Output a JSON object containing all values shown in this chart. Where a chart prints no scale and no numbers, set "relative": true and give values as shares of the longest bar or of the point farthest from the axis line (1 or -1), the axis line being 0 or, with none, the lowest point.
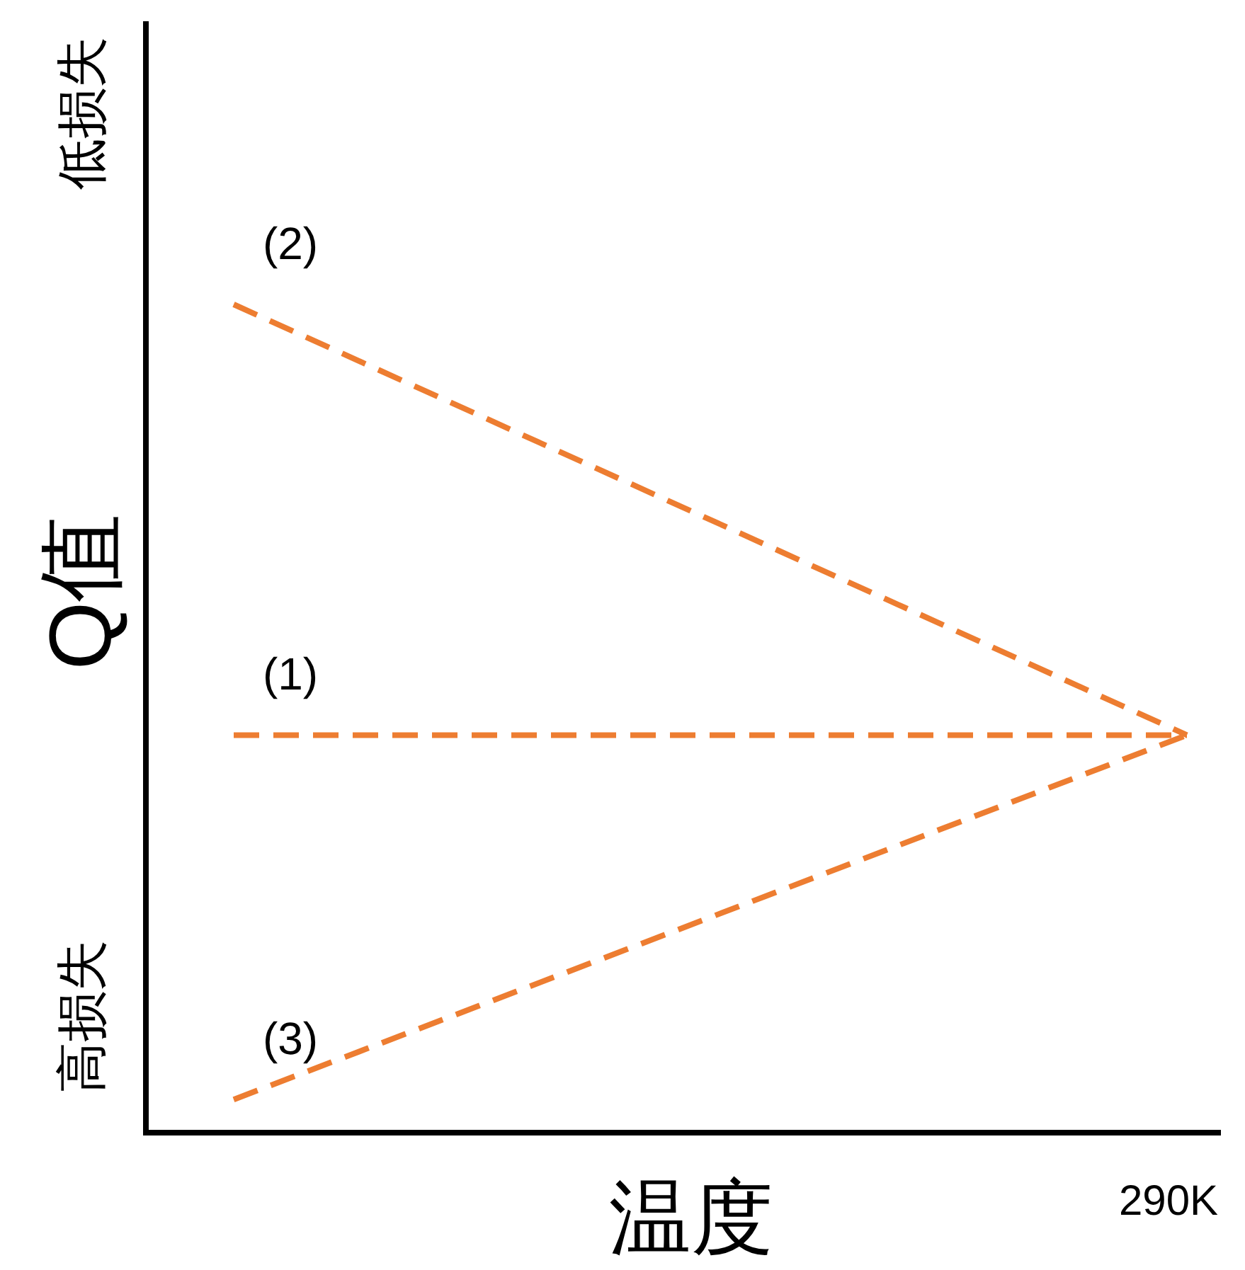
{
  "chart_data": {
    "type": "line",
    "categories": [
      null,
      null
    ],
    "relative": true,
    "xlabel": "温度",
    "ylabel": "Q值",
    "annotations": [
      "低损失",
      "高损失",
      "290K"
    ],
    "line_style": "dashed",
    "series": [
      {
        "name": "(1)",
        "color": "#ed7d31",
        "values": [
          0.48,
          0.48
        ]
      },
      {
        "name": "(2)",
        "color": "#ed7d31",
        "values": [
          1,
          0.48
        ]
      },
      {
        "name": "(3)",
        "color": "#ed7d31",
        "values": [
          0.04,
          0.48
        ]
      }
    ]
  }
}
